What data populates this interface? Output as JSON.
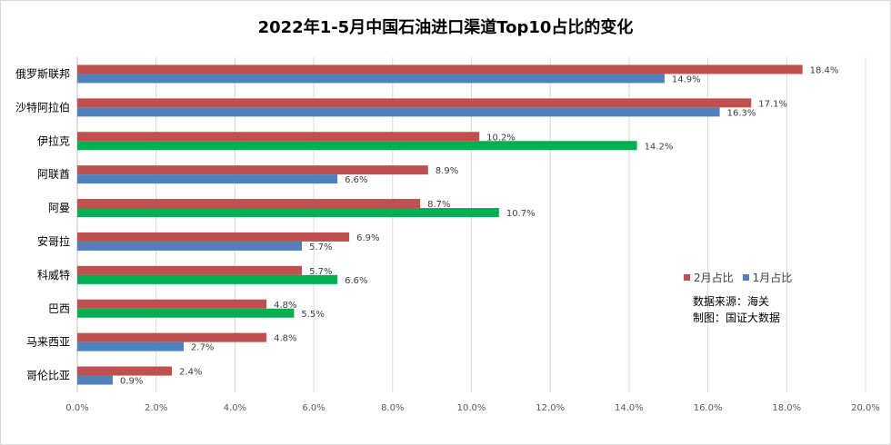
{
  "chart_data": {
    "type": "bar",
    "orientation": "horizontal",
    "title": "2022年1-5月中国石油进口渠道Top10占比的变化",
    "categories": [
      "俄罗斯联邦",
      "沙特阿拉伯",
      "伊拉克",
      "阿联酋",
      "阿曼",
      "安哥拉",
      "科威特",
      "巴西",
      "马来西亚",
      "哥伦比亚"
    ],
    "series": [
      {
        "name": "2月占比",
        "color": "#c0504d",
        "values": [
          18.4,
          17.1,
          10.2,
          8.9,
          8.7,
          6.9,
          5.7,
          4.8,
          4.8,
          2.4
        ],
        "labels": [
          "18.4%",
          "17.1%",
          "10.2%",
          "8.9%",
          "8.7%",
          "6.9%",
          "5.7%",
          "4.8%",
          "4.8%",
          "2.4%"
        ]
      },
      {
        "name": "1月占比",
        "color": "#4f81bd",
        "values": [
          14.9,
          16.3,
          14.2,
          6.6,
          10.7,
          5.7,
          6.6,
          5.5,
          2.7,
          0.9
        ],
        "labels": [
          "14.9%",
          "16.3%",
          "14.2%",
          "6.6%",
          "10.7%",
          "5.7%",
          "6.6%",
          "5.5%",
          "2.7%",
          "0.9%"
        ],
        "bar_colors": [
          "#4f81bd",
          "#4f81bd",
          "#00b050",
          "#4f81bd",
          "#00b050",
          "#4f81bd",
          "#00b050",
          "#00b050",
          "#4f81bd",
          "#4f81bd"
        ]
      }
    ],
    "xlim": [
      0,
      20
    ],
    "xticks": [
      "0.0%",
      "2.0%",
      "4.0%",
      "6.0%",
      "8.0%",
      "10.0%",
      "12.0%",
      "14.0%",
      "16.0%",
      "18.0%",
      "20.0%"
    ],
    "grid": true,
    "legend_position": "right"
  },
  "source_note": {
    "line1": "数据来源：海关",
    "line2": "制图：国证大数据"
  }
}
